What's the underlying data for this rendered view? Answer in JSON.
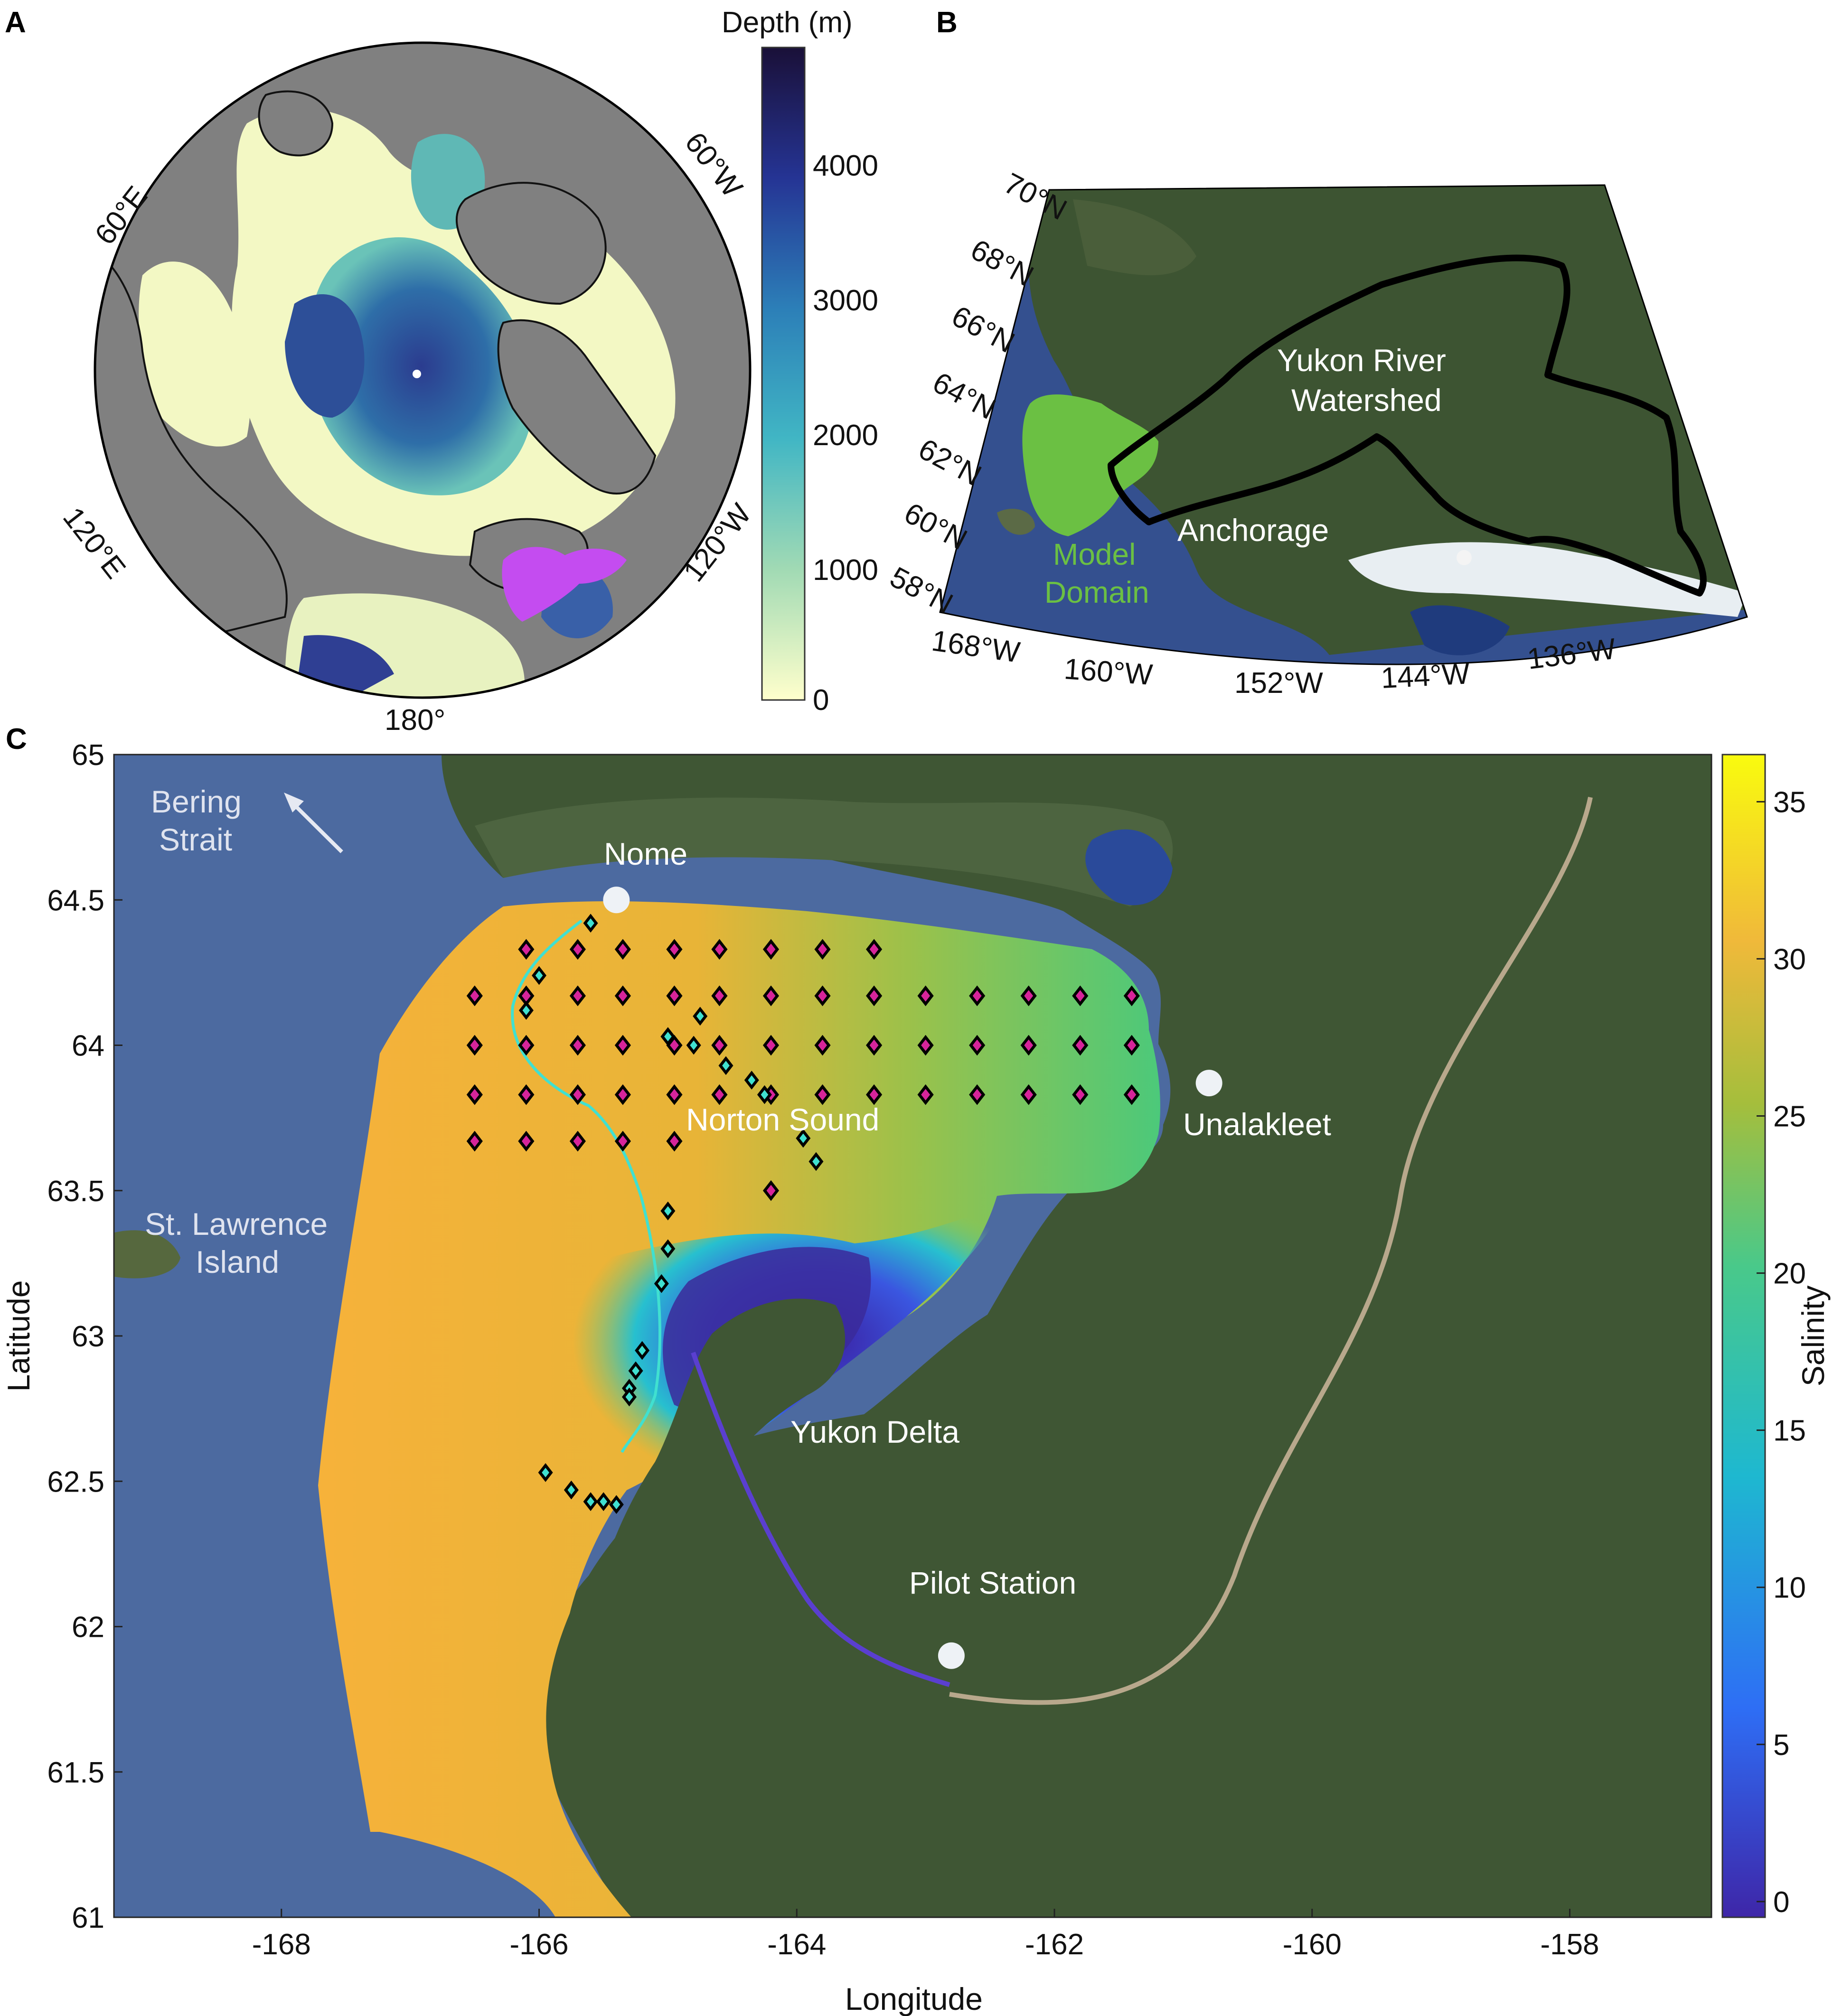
{
  "panels": {
    "A": {
      "letter": "A",
      "colorbar": {
        "title": "Depth (m)",
        "ticks": [
          "4000",
          "3000",
          "2000",
          "1000",
          "0"
        ],
        "colors": [
          "#ffffcc",
          "#a1dab4",
          "#41b6c4",
          "#2c7fb8",
          "#253494",
          "#1a1038"
        ]
      },
      "lon_labels": {
        "e60": "60°E",
        "w60": "60°W",
        "e120": "120°E",
        "w120": "120°W",
        "dl180": "180°"
      },
      "highlight_color": "#c44cf0"
    },
    "B": {
      "letter": "B",
      "lat_labels": [
        "70°N",
        "68°N",
        "66°N",
        "64°N",
        "62°N",
        "60°N",
        "58°N"
      ],
      "lon_labels": [
        "168°W",
        "160°W",
        "152°W",
        "144°W",
        "136°W"
      ],
      "watershed_label_1": "Yukon River",
      "watershed_label_2": "Watershed",
      "anchorage": "Anchorage",
      "model_label_1": "Model",
      "model_label_2": "Domain",
      "model_color": "#6bc043"
    },
    "C": {
      "letter": "C",
      "xlabel": "Longitude",
      "ylabel": "Latitude",
      "x_ticks": [
        "-168",
        "-166",
        "-164",
        "-162",
        "-160",
        "-158"
      ],
      "y_ticks": [
        "65",
        "64.5",
        "64",
        "63.5",
        "63",
        "62.5",
        "62",
        "61.5",
        "61"
      ],
      "colorbar": {
        "title": "Salinity",
        "ticks": [
          "35",
          "30",
          "25",
          "20",
          "15",
          "10",
          "5",
          "0"
        ],
        "colors": [
          "#3e26a8",
          "#2e6ef5",
          "#1eb8d0",
          "#49c98a",
          "#a5be3c",
          "#f0b93a",
          "#f9fb0e"
        ]
      },
      "places": {
        "bering_1": "Bering",
        "bering_2": "Strait",
        "nome": "Nome",
        "unalakleet": "Unalakleet",
        "norton": "Norton Sound",
        "stlawrence_1": "St. Lawrence",
        "stlawrence_2": "Island",
        "yukon_delta": "Yukon Delta",
        "pilot": "Pilot Station"
      },
      "station_color": "#d6249a",
      "track_color": "#40e0d0"
    }
  },
  "chart_data": {
    "type": "heatmap",
    "title": "",
    "xlabel": "Longitude",
    "ylabel": "Latitude",
    "xlim": [
      -169.3,
      -156.9
    ],
    "ylim": [
      61,
      65
    ],
    "colorbar_label": "Salinity",
    "colorbar_range": [
      -0.5,
      36.5
    ],
    "locations": [
      {
        "name": "Nome",
        "lon": -165.4,
        "lat": 64.5
      },
      {
        "name": "Unalakleet",
        "lon": -160.8,
        "lat": 63.87
      },
      {
        "name": "Pilot Station",
        "lon": -162.8,
        "lat": 61.9
      }
    ],
    "grid_stations": [
      [
        -166.1,
        64.33
      ],
      [
        -165.7,
        64.33
      ],
      [
        -165.35,
        64.33
      ],
      [
        -164.95,
        64.33
      ],
      [
        -164.6,
        64.33
      ],
      [
        -164.2,
        64.33
      ],
      [
        -163.8,
        64.33
      ],
      [
        -163.4,
        64.33
      ],
      [
        -166.5,
        64.17
      ],
      [
        -166.1,
        64.17
      ],
      [
        -165.7,
        64.17
      ],
      [
        -165.35,
        64.17
      ],
      [
        -164.95,
        64.17
      ],
      [
        -164.6,
        64.17
      ],
      [
        -164.2,
        64.17
      ],
      [
        -163.8,
        64.17
      ],
      [
        -163.4,
        64.17
      ],
      [
        -163.0,
        64.17
      ],
      [
        -162.6,
        64.17
      ],
      [
        -162.2,
        64.17
      ],
      [
        -161.8,
        64.17
      ],
      [
        -161.4,
        64.17
      ],
      [
        -166.5,
        64.0
      ],
      [
        -166.1,
        64.0
      ],
      [
        -165.7,
        64.0
      ],
      [
        -165.35,
        64.0
      ],
      [
        -164.95,
        64.0
      ],
      [
        -164.6,
        64.0
      ],
      [
        -164.2,
        64.0
      ],
      [
        -163.8,
        64.0
      ],
      [
        -163.4,
        64.0
      ],
      [
        -163.0,
        64.0
      ],
      [
        -162.6,
        64.0
      ],
      [
        -162.2,
        64.0
      ],
      [
        -161.8,
        64.0
      ],
      [
        -161.4,
        64.0
      ],
      [
        -166.5,
        63.83
      ],
      [
        -166.1,
        63.83
      ],
      [
        -165.7,
        63.83
      ],
      [
        -165.35,
        63.83
      ],
      [
        -164.95,
        63.83
      ],
      [
        -164.6,
        63.83
      ],
      [
        -164.2,
        63.83
      ],
      [
        -163.8,
        63.83
      ],
      [
        -163.4,
        63.83
      ],
      [
        -163.0,
        63.83
      ],
      [
        -162.6,
        63.83
      ],
      [
        -162.2,
        63.83
      ],
      [
        -161.8,
        63.83
      ],
      [
        -161.4,
        63.83
      ],
      [
        -166.5,
        63.67
      ],
      [
        -166.1,
        63.67
      ],
      [
        -165.7,
        63.67
      ],
      [
        -165.35,
        63.67
      ],
      [
        -164.95,
        63.67
      ],
      [
        -164.2,
        63.5
      ]
    ],
    "track_stations": [
      [
        -165.6,
        64.42
      ],
      [
        -166.0,
        64.24
      ],
      [
        -166.1,
        64.12
      ],
      [
        -164.75,
        64.1
      ],
      [
        -165.0,
        64.03
      ],
      [
        -164.8,
        64.0
      ],
      [
        -164.55,
        63.93
      ],
      [
        -164.35,
        63.88
      ],
      [
        -164.25,
        63.83
      ],
      [
        -163.95,
        63.68
      ],
      [
        -163.85,
        63.6
      ],
      [
        -165.0,
        63.43
      ],
      [
        -165.0,
        63.3
      ],
      [
        -165.05,
        63.18
      ],
      [
        -165.2,
        62.95
      ],
      [
        -165.25,
        62.88
      ],
      [
        -165.3,
        62.82
      ],
      [
        -165.3,
        62.79
      ],
      [
        -165.95,
        62.53
      ],
      [
        -165.75,
        62.47
      ],
      [
        -165.6,
        62.43
      ],
      [
        -165.5,
        62.43
      ],
      [
        -165.4,
        62.42
      ]
    ]
  }
}
